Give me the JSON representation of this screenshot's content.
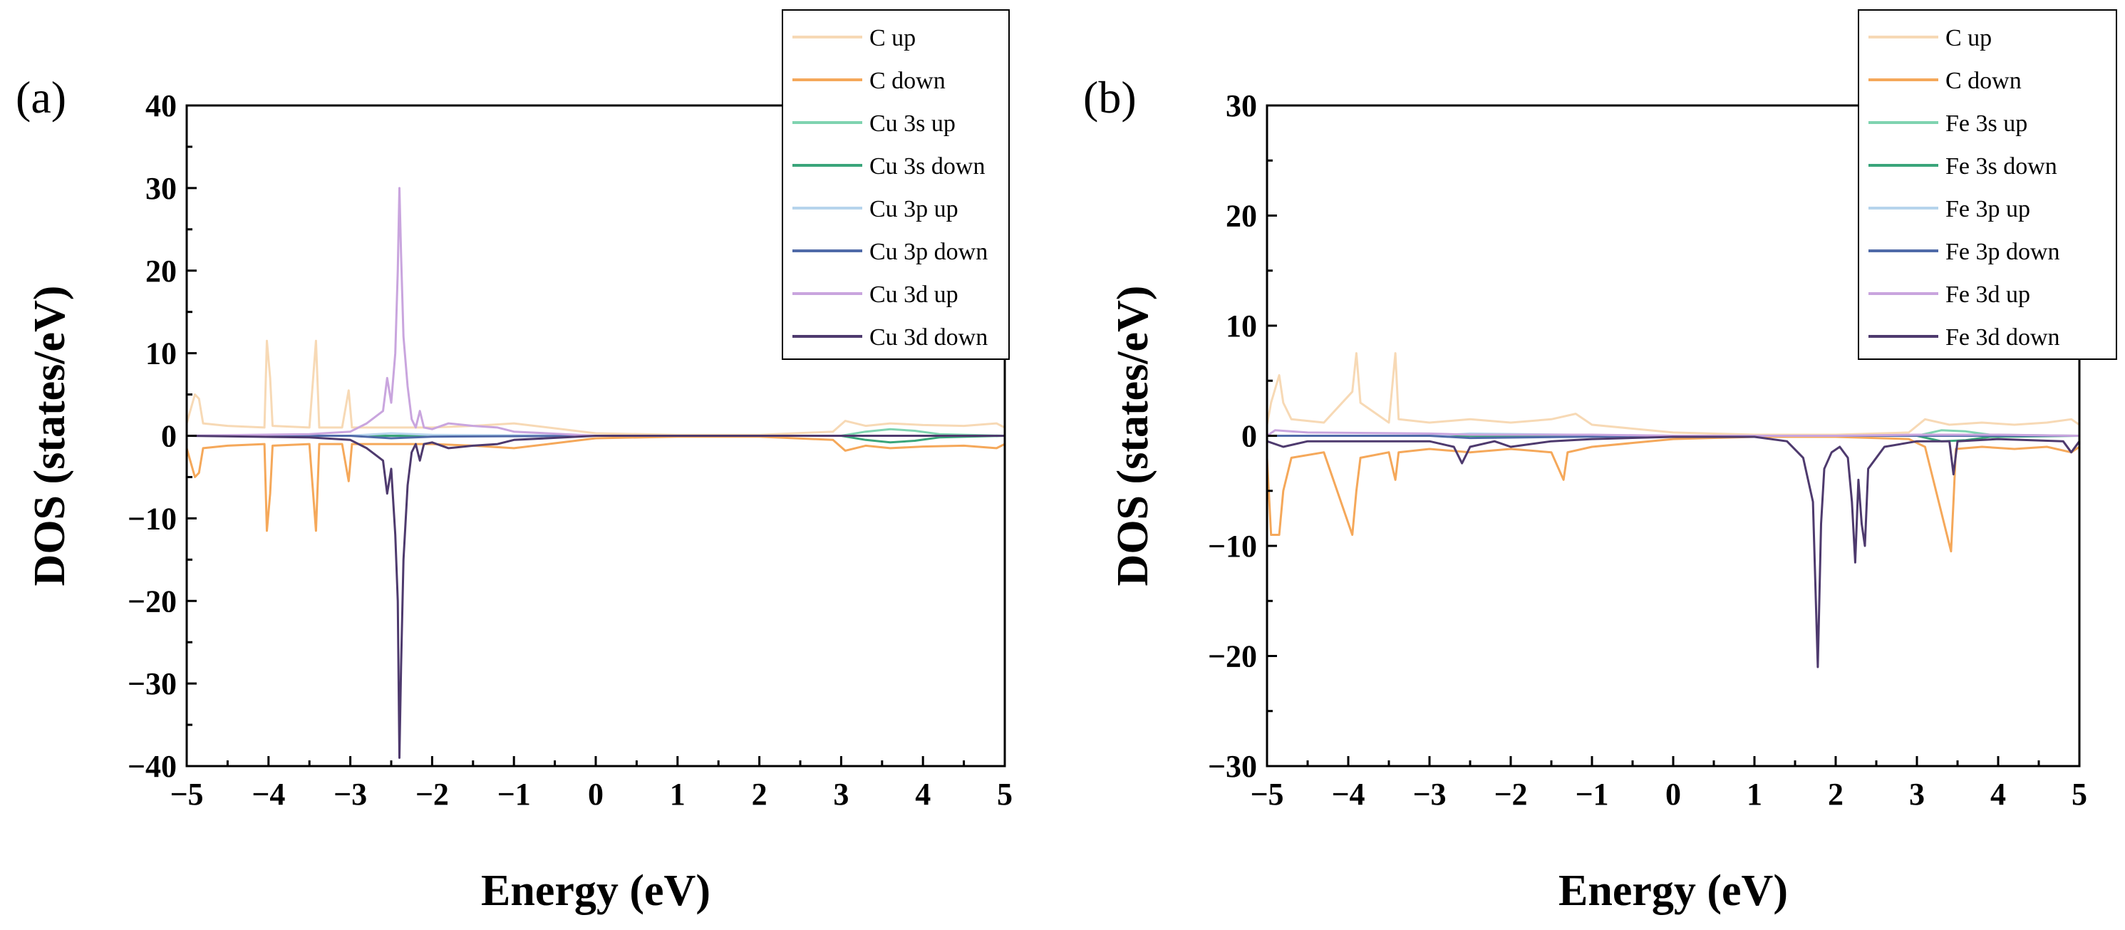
{
  "chart_data": [
    {
      "panel": "(a)",
      "type": "line",
      "xlabel": "Energy (eV)",
      "ylabel": "DOS (states/eV)",
      "xlim": [
        -5,
        5
      ],
      "ylim": [
        -40,
        40
      ],
      "xticks": [
        -5,
        -4,
        -3,
        -2,
        -1,
        0,
        1,
        2,
        3,
        4,
        5
      ],
      "yticks": [
        -40,
        -30,
        -20,
        -10,
        0,
        10,
        20,
        30,
        40
      ],
      "legend_position": "top-right",
      "series": [
        {
          "name": "C up",
          "color": "#f7d9b5",
          "x": [
            -5,
            -4.9,
            -4.85,
            -4.8,
            -4.5,
            -4.05,
            -4.02,
            -3.98,
            -3.95,
            -3.5,
            -3.42,
            -3.38,
            -3.1,
            -3.02,
            -2.98,
            -2.5,
            -2.0,
            -1.5,
            -1.0,
            0,
            1,
            2,
            2.9,
            3.05,
            3.3,
            3.6,
            4.0,
            4.5,
            4.9,
            5
          ],
          "y": [
            1.5,
            5,
            4.5,
            1.5,
            1.2,
            1,
            11.5,
            7,
            1.2,
            1,
            11.5,
            1,
            1,
            5.5,
            1,
            1,
            1,
            1.2,
            1.5,
            0.3,
            0.1,
            0.1,
            0.5,
            1.8,
            1.2,
            1.5,
            1.3,
            1.2,
            1.5,
            1
          ]
        },
        {
          "name": "C down",
          "color": "#f5a85a",
          "x": [
            -5,
            -4.9,
            -4.85,
            -4.8,
            -4.5,
            -4.05,
            -4.02,
            -3.98,
            -3.95,
            -3.5,
            -3.42,
            -3.38,
            -3.1,
            -3.02,
            -2.98,
            -2.5,
            -2.0,
            -1.5,
            -1.0,
            0,
            1,
            2,
            2.9,
            3.05,
            3.3,
            3.6,
            4.0,
            4.5,
            4.9,
            5
          ],
          "y": [
            -1.5,
            -5,
            -4.5,
            -1.5,
            -1.2,
            -1,
            -11.5,
            -7,
            -1.2,
            -1,
            -11.5,
            -1,
            -1,
            -5.5,
            -1,
            -1,
            -1,
            -1.2,
            -1.5,
            -0.3,
            -0.1,
            -0.1,
            -0.5,
            -1.8,
            -1.2,
            -1.5,
            -1.3,
            -1.2,
            -1.5,
            -1
          ]
        },
        {
          "name": "Cu 3s up",
          "color": "#7fd3b0",
          "x": [
            -5,
            3.0,
            3.3,
            3.6,
            3.9,
            4.2,
            5
          ],
          "y": [
            0,
            0,
            0.5,
            0.8,
            0.6,
            0.2,
            0
          ]
        },
        {
          "name": "Cu 3s down",
          "color": "#3aa57a",
          "x": [
            -5,
            3.0,
            3.3,
            3.6,
            3.9,
            4.2,
            5
          ],
          "y": [
            0,
            0,
            -0.5,
            -0.8,
            -0.6,
            -0.2,
            0
          ]
        },
        {
          "name": "Cu 3p up",
          "color": "#b6d4ec",
          "x": [
            -5,
            -3,
            -2.5,
            -2.0,
            0,
            5
          ],
          "y": [
            0,
            0,
            0.3,
            0.1,
            0,
            0
          ]
        },
        {
          "name": "Cu 3p down",
          "color": "#4f6aa8",
          "x": [
            -5,
            -3,
            -2.5,
            -2.0,
            0,
            5
          ],
          "y": [
            0,
            0,
            -0.3,
            -0.1,
            0,
            0
          ]
        },
        {
          "name": "Cu 3d up",
          "color": "#c9a5de",
          "x": [
            -5,
            -3.5,
            -3.0,
            -2.8,
            -2.6,
            -2.55,
            -2.5,
            -2.45,
            -2.42,
            -2.4,
            -2.38,
            -2.35,
            -2.3,
            -2.25,
            -2.2,
            -2.15,
            -2.1,
            -2.0,
            -1.8,
            -1.5,
            -1.2,
            -1.0,
            0,
            5
          ],
          "y": [
            0,
            0.2,
            0.5,
            1.5,
            3,
            7,
            4,
            10,
            20,
            30,
            22,
            12,
            6,
            2,
            1,
            3,
            1,
            0.8,
            1.5,
            1.2,
            1,
            0.5,
            0,
            0
          ]
        },
        {
          "name": "Cu 3d down",
          "color": "#4e3a6e",
          "x": [
            -5,
            -3.5,
            -3.0,
            -2.8,
            -2.6,
            -2.55,
            -2.5,
            -2.45,
            -2.42,
            -2.4,
            -2.38,
            -2.35,
            -2.3,
            -2.25,
            -2.2,
            -2.15,
            -2.1,
            -2.0,
            -1.8,
            -1.5,
            -1.2,
            -1.0,
            0,
            5
          ],
          "y": [
            0,
            -0.2,
            -0.5,
            -1.5,
            -3,
            -7,
            -4,
            -12,
            -20,
            -39,
            -28,
            -15,
            -6,
            -2,
            -1,
            -3,
            -1,
            -0.8,
            -1.5,
            -1.2,
            -1,
            -0.5,
            0,
            0
          ]
        }
      ]
    },
    {
      "panel": "(b)",
      "type": "line",
      "xlabel": "Energy (eV)",
      "ylabel": "DOS (states/eV)",
      "xlim": [
        -5,
        5
      ],
      "ylim": [
        -30,
        30
      ],
      "xticks": [
        -5,
        -4,
        -3,
        -2,
        -1,
        0,
        1,
        2,
        3,
        4,
        5
      ],
      "yticks": [
        -30,
        -20,
        -10,
        0,
        10,
        20,
        30
      ],
      "legend_position": "top-right",
      "series": [
        {
          "name": "C up",
          "color": "#f7d9b5",
          "x": [
            -5,
            -4.95,
            -4.85,
            -4.8,
            -4.7,
            -4.3,
            -3.95,
            -3.9,
            -3.85,
            -3.5,
            -3.42,
            -3.38,
            -3.0,
            -2.5,
            -2.0,
            -1.5,
            -1.2,
            -1.0,
            0,
            1,
            2,
            2.9,
            3.1,
            3.4,
            3.8,
            4.2,
            4.6,
            4.9,
            5
          ],
          "y": [
            1,
            3,
            5.5,
            3,
            1.5,
            1.2,
            4,
            7.5,
            3,
            1.2,
            7.5,
            1.5,
            1.2,
            1.5,
            1.2,
            1.5,
            2,
            1,
            0.3,
            0.1,
            0.1,
            0.3,
            1.5,
            1,
            1.2,
            1,
            1.2,
            1.5,
            1
          ]
        },
        {
          "name": "C down",
          "color": "#f5a85a",
          "x": [
            -5,
            -4.95,
            -4.85,
            -4.8,
            -4.7,
            -4.3,
            -3.95,
            -3.9,
            -3.85,
            -3.5,
            -3.42,
            -3.38,
            -3.0,
            -2.5,
            -2.0,
            -1.5,
            -1.35,
            -1.3,
            -1.0,
            0,
            1,
            2,
            2.9,
            3.1,
            3.42,
            3.45,
            3.48,
            3.8,
            4.2,
            4.6,
            4.9,
            5
          ],
          "y": [
            -2,
            -9,
            -9,
            -5,
            -2,
            -1.5,
            -9,
            -5,
            -2,
            -1.5,
            -4,
            -1.5,
            -1.2,
            -1.5,
            -1.2,
            -1.5,
            -4,
            -1.5,
            -1,
            -0.3,
            -0.1,
            -0.1,
            -0.3,
            -1,
            -10.5,
            -6,
            -1.2,
            -1,
            -1.2,
            -1,
            -1.5,
            -1
          ]
        },
        {
          "name": "Fe 3s up",
          "color": "#7fd3b0",
          "x": [
            -5,
            3.0,
            3.3,
            3.6,
            3.9,
            5
          ],
          "y": [
            0,
            0,
            0.5,
            0.4,
            0.1,
            0
          ]
        },
        {
          "name": "Fe 3s down",
          "color": "#3aa57a",
          "x": [
            -5,
            3.0,
            3.3,
            3.6,
            3.9,
            5
          ],
          "y": [
            0,
            0,
            -0.5,
            -0.4,
            -0.1,
            0
          ]
        },
        {
          "name": "Fe 3p up",
          "color": "#b6d4ec",
          "x": [
            -5,
            -3,
            -2.5,
            0,
            5
          ],
          "y": [
            0,
            0,
            0.2,
            0,
            0
          ]
        },
        {
          "name": "Fe 3p down",
          "color": "#4f6aa8",
          "x": [
            -5,
            -3,
            -2.5,
            0,
            5
          ],
          "y": [
            0,
            0,
            -0.2,
            0,
            0
          ]
        },
        {
          "name": "Fe 3d up",
          "color": "#c9a5de",
          "x": [
            -5,
            -4.9,
            -4.5,
            -3,
            -2.5,
            -2,
            -1,
            0,
            1,
            2,
            3,
            4,
            5
          ],
          "y": [
            0,
            0.5,
            0.3,
            0.2,
            0.1,
            0.1,
            0.1,
            0,
            0,
            0,
            0.1,
            0.1,
            0
          ]
        },
        {
          "name": "Fe 3d down",
          "color": "#4e3a6e",
          "x": [
            -5,
            -4.8,
            -4.5,
            -3.0,
            -2.7,
            -2.6,
            -2.5,
            -2.2,
            -2.0,
            -1.5,
            -1.0,
            0,
            1.0,
            1.4,
            1.6,
            1.72,
            1.78,
            1.82,
            1.86,
            1.95,
            2.05,
            2.15,
            2.2,
            2.24,
            2.28,
            2.32,
            2.36,
            2.4,
            2.6,
            3.0,
            3.4,
            3.45,
            3.5,
            4.0,
            4.8,
            4.9,
            5
          ],
          "y": [
            -0.5,
            -1,
            -0.5,
            -0.5,
            -1,
            -2.5,
            -1,
            -0.5,
            -1,
            -0.5,
            -0.3,
            -0.1,
            -0.1,
            -0.5,
            -2,
            -6,
            -21,
            -8,
            -3,
            -1.5,
            -1,
            -2,
            -6,
            -11.5,
            -4,
            -8,
            -10,
            -3,
            -1,
            -0.5,
            -0.5,
            -3.5,
            -0.5,
            -0.3,
            -0.5,
            -1.5,
            -0.5
          ]
        }
      ]
    }
  ]
}
